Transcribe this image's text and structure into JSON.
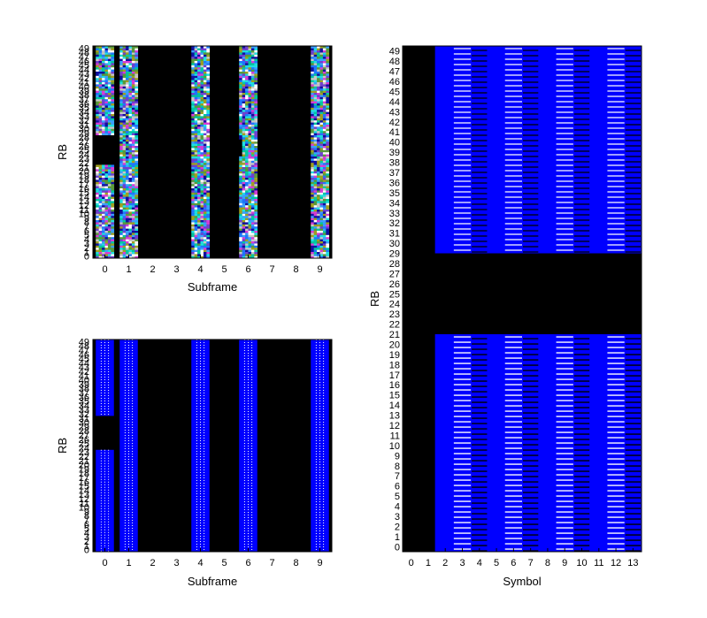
{
  "chart_data": [
    {
      "type": "heatmap",
      "xlabel": "Subframe",
      "ylabel": "RB",
      "x": [
        0,
        1,
        2,
        3,
        4,
        5,
        6,
        7,
        8,
        9
      ],
      "ylim": [
        0,
        49
      ],
      "style": "random-color",
      "active_columns": [
        0,
        1,
        4,
        6,
        9
      ],
      "blank_rb_range_in_subframe_0": [
        22,
        28
      ],
      "partial_blank_in_subframe_6": [
        24,
        27
      ],
      "background": "#000000"
    },
    {
      "type": "heatmap",
      "xlabel": "Subframe",
      "ylabel": "RB",
      "x": [
        0,
        1,
        2,
        3,
        4,
        5,
        6,
        7,
        8,
        9
      ],
      "ylim": [
        0,
        49
      ],
      "style": "blue-with-white-lines",
      "active_columns": [
        0,
        1,
        4,
        6,
        9
      ],
      "blank_rb_range_in_subframe_0": [
        24,
        31
      ],
      "fill_color": "#0000ff",
      "line_color": "#ffffff",
      "background": "#000000"
    },
    {
      "type": "heatmap",
      "xlabel": "Symbol",
      "ylabel": "RB",
      "x": [
        0,
        1,
        2,
        3,
        4,
        5,
        6,
        7,
        8,
        9,
        10,
        11,
        12,
        13
      ],
      "ylim": [
        0,
        49
      ],
      "blank_symbols": [
        0,
        1
      ],
      "blank_rb_range": [
        21,
        29
      ],
      "white_dash_symbols": [
        3,
        6,
        9,
        12
      ],
      "black_dash_symbols": [
        4,
        7,
        10,
        13
      ],
      "fill_color": "#0000ff",
      "background": "#000000"
    }
  ],
  "axes": {
    "top_left": {
      "xlabel": "Subframe",
      "ylabel": "RB"
    },
    "bottom_left": {
      "xlabel": "Subframe",
      "ylabel": "RB"
    },
    "right": {
      "xlabel": "Symbol",
      "ylabel": "RB"
    }
  }
}
